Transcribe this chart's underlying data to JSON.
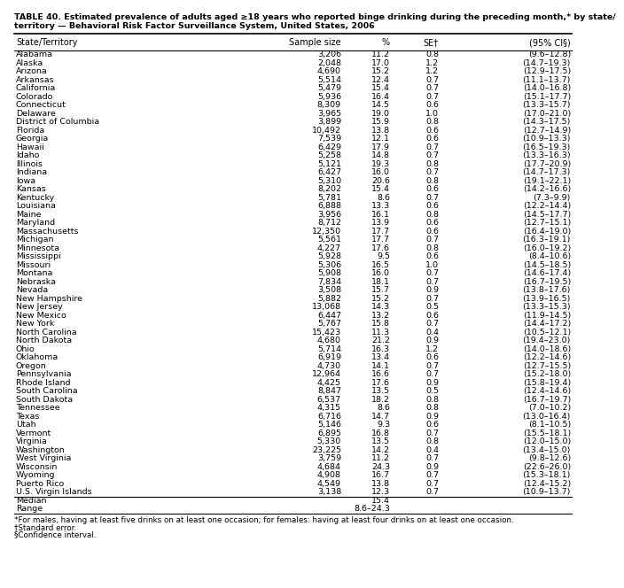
{
  "title_line1": "TABLE 40. Estimated prevalence of adults aged ≥18 years who reported binge drinking during the preceding month,* by state/",
  "title_line2": "territory — Behavioral Risk Factor Surveillance System, United States, 2006",
  "columns": [
    "State/Territory",
    "Sample size",
    "%",
    "SE†",
    "(95% CI§)"
  ],
  "rows": [
    [
      "Alabama",
      "3,206",
      "11.2",
      "0.8",
      "(9.6–12.8)"
    ],
    [
      "Alaska",
      "2,048",
      "17.0",
      "1.2",
      "(14.7–19.3)"
    ],
    [
      "Arizona",
      "4,690",
      "15.2",
      "1.2",
      "(12.9–17.5)"
    ],
    [
      "Arkansas",
      "5,514",
      "12.4",
      "0.7",
      "(11.1–13.7)"
    ],
    [
      "California",
      "5,479",
      "15.4",
      "0.7",
      "(14.0–16.8)"
    ],
    [
      "Colorado",
      "5,936",
      "16.4",
      "0.7",
      "(15.1–17.7)"
    ],
    [
      "Connecticut",
      "8,309",
      "14.5",
      "0.6",
      "(13.3–15.7)"
    ],
    [
      "Delaware",
      "3,965",
      "19.0",
      "1.0",
      "(17.0–21.0)"
    ],
    [
      "District of Columbia",
      "3,899",
      "15.9",
      "0.8",
      "(14.3–17.5)"
    ],
    [
      "Florida",
      "10,492",
      "13.8",
      "0.6",
      "(12.7–14.9)"
    ],
    [
      "Georgia",
      "7,539",
      "12.1",
      "0.6",
      "(10.9–13.3)"
    ],
    [
      "Hawaii",
      "6,429",
      "17.9",
      "0.7",
      "(16.5–19.3)"
    ],
    [
      "Idaho",
      "5,258",
      "14.8",
      "0.7",
      "(13.3–16.3)"
    ],
    [
      "Illinois",
      "5,121",
      "19.3",
      "0.8",
      "(17.7–20.9)"
    ],
    [
      "Indiana",
      "6,427",
      "16.0",
      "0.7",
      "(14.7–17.3)"
    ],
    [
      "Iowa",
      "5,310",
      "20.6",
      "0.8",
      "(19.1–22.1)"
    ],
    [
      "Kansas",
      "8,202",
      "15.4",
      "0.6",
      "(14.2–16.6)"
    ],
    [
      "Kentucky",
      "5,781",
      "8.6",
      "0.7",
      "(7.3–9.9)"
    ],
    [
      "Louisiana",
      "6,888",
      "13.3",
      "0.6",
      "(12.2–14.4)"
    ],
    [
      "Maine",
      "3,956",
      "16.1",
      "0.8",
      "(14.5–17.7)"
    ],
    [
      "Maryland",
      "8,712",
      "13.9",
      "0.6",
      "(12.7–15.1)"
    ],
    [
      "Massachusetts",
      "12,350",
      "17.7",
      "0.6",
      "(16.4–19.0)"
    ],
    [
      "Michigan",
      "5,561",
      "17.7",
      "0.7",
      "(16.3–19.1)"
    ],
    [
      "Minnesota",
      "4,227",
      "17.6",
      "0.8",
      "(16.0–19.2)"
    ],
    [
      "Mississippi",
      "5,928",
      "9.5",
      "0.6",
      "(8.4–10.6)"
    ],
    [
      "Missouri",
      "5,306",
      "16.5",
      "1.0",
      "(14.5–18.5)"
    ],
    [
      "Montana",
      "5,908",
      "16.0",
      "0.7",
      "(14.6–17.4)"
    ],
    [
      "Nebraska",
      "7,834",
      "18.1",
      "0.7",
      "(16.7–19.5)"
    ],
    [
      "Nevada",
      "3,508",
      "15.7",
      "0.9",
      "(13.8–17.6)"
    ],
    [
      "New Hampshire",
      "5,882",
      "15.2",
      "0.7",
      "(13.9–16.5)"
    ],
    [
      "New Jersey",
      "13,068",
      "14.3",
      "0.5",
      "(13.3–15.3)"
    ],
    [
      "New Mexico",
      "6,447",
      "13.2",
      "0.6",
      "(11.9–14.5)"
    ],
    [
      "New York",
      "5,767",
      "15.8",
      "0.7",
      "(14.4–17.2)"
    ],
    [
      "North Carolina",
      "15,423",
      "11.3",
      "0.4",
      "(10.5–12.1)"
    ],
    [
      "North Dakota",
      "4,680",
      "21.2",
      "0.9",
      "(19.4–23.0)"
    ],
    [
      "Ohio",
      "5,714",
      "16.3",
      "1.2",
      "(14.0–18.6)"
    ],
    [
      "Oklahoma",
      "6,919",
      "13.4",
      "0.6",
      "(12.2–14.6)"
    ],
    [
      "Oregon",
      "4,730",
      "14.1",
      "0.7",
      "(12.7–15.5)"
    ],
    [
      "Pennsylvania",
      "12,964",
      "16.6",
      "0.7",
      "(15.2–18.0)"
    ],
    [
      "Rhode Island",
      "4,425",
      "17.6",
      "0.9",
      "(15.8–19.4)"
    ],
    [
      "South Carolina",
      "8,847",
      "13.5",
      "0.5",
      "(12.4–14.6)"
    ],
    [
      "South Dakota",
      "6,537",
      "18.2",
      "0.8",
      "(16.7–19.7)"
    ],
    [
      "Tennessee",
      "4,315",
      "8.6",
      "0.8",
      "(7.0–10.2)"
    ],
    [
      "Texas",
      "6,716",
      "14.7",
      "0.9",
      "(13.0–16.4)"
    ],
    [
      "Utah",
      "5,146",
      "9.3",
      "0.6",
      "(8.1–10.5)"
    ],
    [
      "Vermont",
      "6,895",
      "16.8",
      "0.7",
      "(15.5–18.1)"
    ],
    [
      "Virginia",
      "5,330",
      "13.5",
      "0.8",
      "(12.0–15.0)"
    ],
    [
      "Washington",
      "23,225",
      "14.2",
      "0.4",
      "(13.4–15.0)"
    ],
    [
      "West Virginia",
      "3,759",
      "11.2",
      "0.7",
      "(9.8–12.6)"
    ],
    [
      "Wisconsin",
      "4,684",
      "24.3",
      "0.9",
      "(22.6–26.0)"
    ],
    [
      "Wyoming",
      "4,908",
      "16.7",
      "0.7",
      "(15.3–18.1)"
    ],
    [
      "Puerto Rico",
      "4,549",
      "13.8",
      "0.7",
      "(12.4–15.2)"
    ],
    [
      "U.S. Virgin Islands",
      "3,138",
      "12.3",
      "0.7",
      "(10.9–13.7)"
    ]
  ],
  "footer_rows": [
    [
      "Median",
      "",
      "15.4",
      "",
      ""
    ],
    [
      "Range",
      "",
      "8.6–24.3",
      "",
      ""
    ]
  ],
  "footnotes": [
    "*For males, having at least five drinks on at least one occasion; for females: having at least four drinks on at least one occasion.",
    "†Standard error.",
    "§Confidence interval."
  ],
  "title_fontsize": 6.8,
  "header_fontsize": 7.0,
  "data_fontsize": 6.8,
  "footnote_fontsize": 6.3
}
